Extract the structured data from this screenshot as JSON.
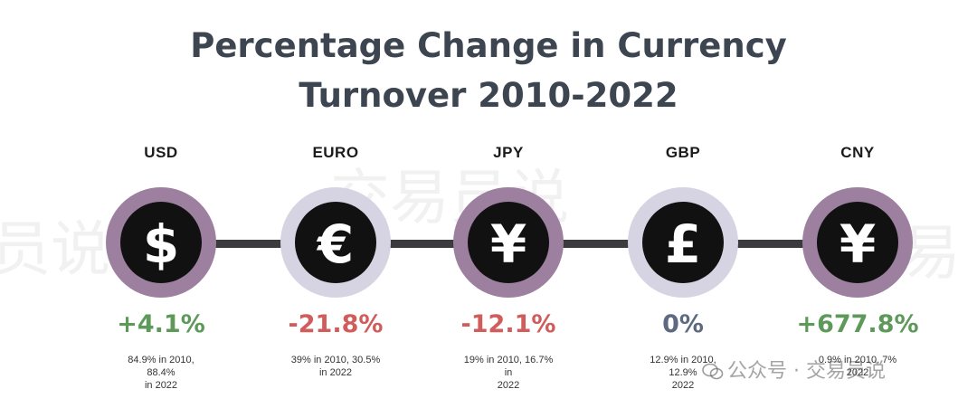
{
  "title_line1": "Percentage Change in Currency",
  "title_line2": "Turnover 2010-2022",
  "colors": {
    "title": "#3c4550",
    "positive": "#5d9a5a",
    "negative": "#d05c5c",
    "neutral": "#5e6a80",
    "ring_purple": "#9d7f9f",
    "ring_lavender": "#d6d3e3",
    "coin": "#111111",
    "connector": "#3b3b3d"
  },
  "watermark": {
    "big_text_1": "交易员说",
    "big_text_2": "员说",
    "big_text_3": "交易",
    "small_text": "公众号 · 交易员说"
  },
  "currencies": [
    {
      "code": "USD",
      "symbol": "$",
      "icon": "dollar-icon",
      "ring": "purple",
      "change": "+4.1%",
      "sentiment": "positive",
      "detail_line1": "84.9% in 2010, 88.4%",
      "detail_line2": "in 2022"
    },
    {
      "code": "EURO",
      "symbol": "€",
      "icon": "euro-icon",
      "ring": "lavender",
      "change": "-21.8%",
      "sentiment": "negative",
      "detail_line1": "39% in 2010, 30.5%",
      "detail_line2": "in 2022"
    },
    {
      "code": "JPY",
      "symbol": "¥",
      "icon": "yen-icon",
      "ring": "purple",
      "change": "-12.1%",
      "sentiment": "negative",
      "detail_line1": "19% in 2010, 16.7% in",
      "detail_line2": "2022"
    },
    {
      "code": "GBP",
      "symbol": "£",
      "icon": "pound-icon",
      "ring": "lavender",
      "change": "0%",
      "sentiment": "neutral",
      "detail_line1": "12.9% in 2010, 12.9%",
      "detail_line2": "2022"
    },
    {
      "code": "CNY",
      "symbol": "¥",
      "icon": "yuan-icon",
      "ring": "purple",
      "change": "+677.8%",
      "sentiment": "positive",
      "detail_line1": "0.9% in 2010, 7%",
      "detail_line2": "2022"
    }
  ],
  "chart_data": {
    "type": "table",
    "title": "Percentage Change in Currency Turnover 2010-2022",
    "categories": [
      "USD",
      "EURO",
      "JPY",
      "GBP",
      "CNY"
    ],
    "series": [
      {
        "name": "2010",
        "values": [
          84.9,
          39,
          19,
          12.9,
          0.9
        ]
      },
      {
        "name": "2022",
        "values": [
          88.4,
          30.5,
          16.7,
          12.9,
          7
        ]
      },
      {
        "name": "Percentage Change",
        "values": [
          4.1,
          -21.8,
          -12.1,
          0,
          677.8
        ]
      }
    ]
  }
}
